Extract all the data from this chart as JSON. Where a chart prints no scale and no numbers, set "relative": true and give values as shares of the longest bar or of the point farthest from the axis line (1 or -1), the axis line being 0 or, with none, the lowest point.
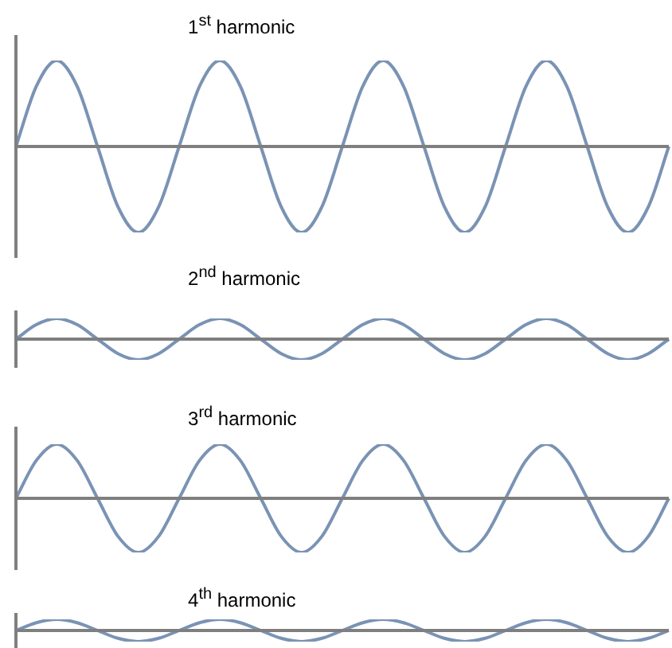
{
  "chart_data": [
    {
      "type": "line",
      "title": "1$^{st}$ harmonic",
      "relative": true,
      "categories": [
        null,
        null,
        null,
        null,
        null,
        null,
        null,
        null,
        null,
        null,
        null,
        null,
        null,
        null,
        null,
        null,
        null,
        null,
        null,
        null,
        null,
        null,
        null,
        null,
        null,
        null,
        null,
        null,
        null,
        null,
        null,
        null,
        null
      ],
      "series": [
        {
          "color": "#7a93b4",
          "values": [
            0,
            0.7,
            1,
            0.7,
            0,
            -0.7,
            -1,
            -0.7,
            0,
            0.7,
            1,
            0.7,
            0,
            -0.7,
            -1,
            -0.7,
            0,
            0.7,
            1,
            0.7,
            0,
            -0.7,
            -1,
            -0.7,
            0,
            0.7,
            1,
            0.7,
            0,
            -0.7,
            -1,
            -0.7,
            0
          ]
        }
      ],
      "marker": "none"
    },
    {
      "type": "line",
      "title": "2$^{nd}$ harmonic",
      "relative": true,
      "categories": [
        null,
        null,
        null,
        null,
        null,
        null,
        null,
        null,
        null,
        null,
        null,
        null,
        null,
        null,
        null,
        null,
        null,
        null,
        null,
        null,
        null,
        null,
        null,
        null,
        null,
        null,
        null,
        null,
        null,
        null,
        null,
        null,
        null
      ],
      "series": [
        {
          "color": "#7a93b4",
          "values": [
            0,
            0.7,
            1,
            0.7,
            0,
            -0.7,
            -1,
            -0.7,
            0,
            0.7,
            1,
            0.7,
            0,
            -0.7,
            -1,
            -0.7,
            0,
            0.7,
            1,
            0.7,
            0,
            -0.7,
            -1,
            -0.7,
            0,
            0.7,
            1,
            0.7,
            0,
            -0.7,
            -1,
            -0.7,
            0
          ]
        }
      ],
      "marker": "none"
    },
    {
      "type": "line",
      "title": "3$^{rd}$ harmonic",
      "relative": true,
      "categories": [
        null,
        null,
        null,
        null,
        null,
        null,
        null,
        null,
        null,
        null,
        null,
        null,
        null,
        null,
        null,
        null,
        null,
        null,
        null,
        null,
        null,
        null,
        null,
        null,
        null,
        null,
        null,
        null,
        null,
        null,
        null,
        null,
        null
      ],
      "series": [
        {
          "color": "#7a93b4",
          "values": [
            0,
            0.7,
            1,
            0.7,
            0,
            -0.7,
            -1,
            -0.7,
            0,
            0.7,
            1,
            0.7,
            0,
            -0.7,
            -1,
            -0.7,
            0,
            0.7,
            1,
            0.7,
            0,
            -0.7,
            -1,
            -0.7,
            0,
            0.7,
            1,
            0.7,
            0,
            -0.7,
            -1,
            -0.7,
            0
          ]
        }
      ],
      "marker": "none"
    },
    {
      "type": "line",
      "title": "4$^{th}$ harmonic",
      "relative": true,
      "categories": [
        null,
        null,
        null,
        null,
        null,
        null,
        null,
        null,
        null,
        null,
        null,
        null,
        null,
        null,
        null,
        null,
        null,
        null,
        null,
        null,
        null,
        null,
        null,
        null,
        null,
        null,
        null,
        null,
        null,
        null,
        null,
        null,
        null
      ],
      "series": [
        {
          "color": "#7a93b4",
          "values": [
            0,
            0.7,
            1,
            0.7,
            0,
            -0.7,
            -1,
            -0.7,
            0,
            0.7,
            1,
            0.7,
            0,
            -0.7,
            -1,
            -0.7,
            0,
            0.7,
            1,
            0.7,
            0,
            -0.7,
            -1,
            -0.7,
            0,
            0.7,
            1,
            0.7,
            0,
            -0.7,
            -1,
            -0.7,
            0
          ]
        }
      ],
      "marker": "none"
    }
  ]
}
